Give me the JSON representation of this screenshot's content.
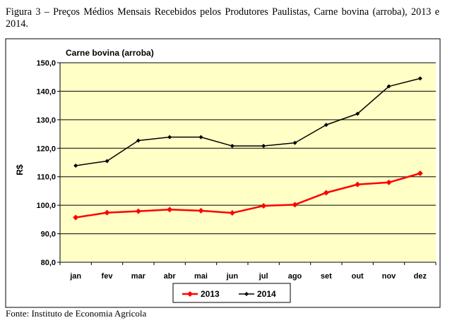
{
  "figure": {
    "caption": "Figura 3 – Preços Médios Mensais Recebidos pelos Produtores Paulistas, Carne bovina (arroba), 2013 e 2014.",
    "source": "Fonte: Instituto de Economia Agrícola"
  },
  "colors": {
    "plot_background": "#ffffc6",
    "series_2013": "#ff0000",
    "series_2014": "#000000",
    "gridline": "#000000"
  },
  "chart_data": {
    "type": "line",
    "title": "Carne bovina (arroba)",
    "xlabel": "",
    "ylabel": "R$",
    "ylim": [
      80,
      150
    ],
    "ytick_step": 10,
    "ytick_labels": [
      "80,0",
      "90,0",
      "100,0",
      "110,0",
      "120,0",
      "130,0",
      "140,0",
      "150,0"
    ],
    "grid": "horizontal",
    "legend_position": "bottom",
    "categories": [
      "jan",
      "fev",
      "mar",
      "abr",
      "mai",
      "jun",
      "jul",
      "ago",
      "set",
      "out",
      "nov",
      "dez"
    ],
    "series": [
      {
        "name": "2013",
        "color": "#ff0000",
        "values": [
          95.7,
          97.4,
          97.9,
          98.5,
          98.1,
          97.3,
          99.8,
          100.2,
          104.4,
          107.3,
          108.0,
          111.2
        ]
      },
      {
        "name": "2014",
        "color": "#000000",
        "values": [
          113.9,
          115.5,
          122.7,
          123.9,
          123.9,
          120.8,
          120.8,
          121.9,
          128.2,
          132.1,
          141.7,
          144.5
        ]
      }
    ]
  }
}
